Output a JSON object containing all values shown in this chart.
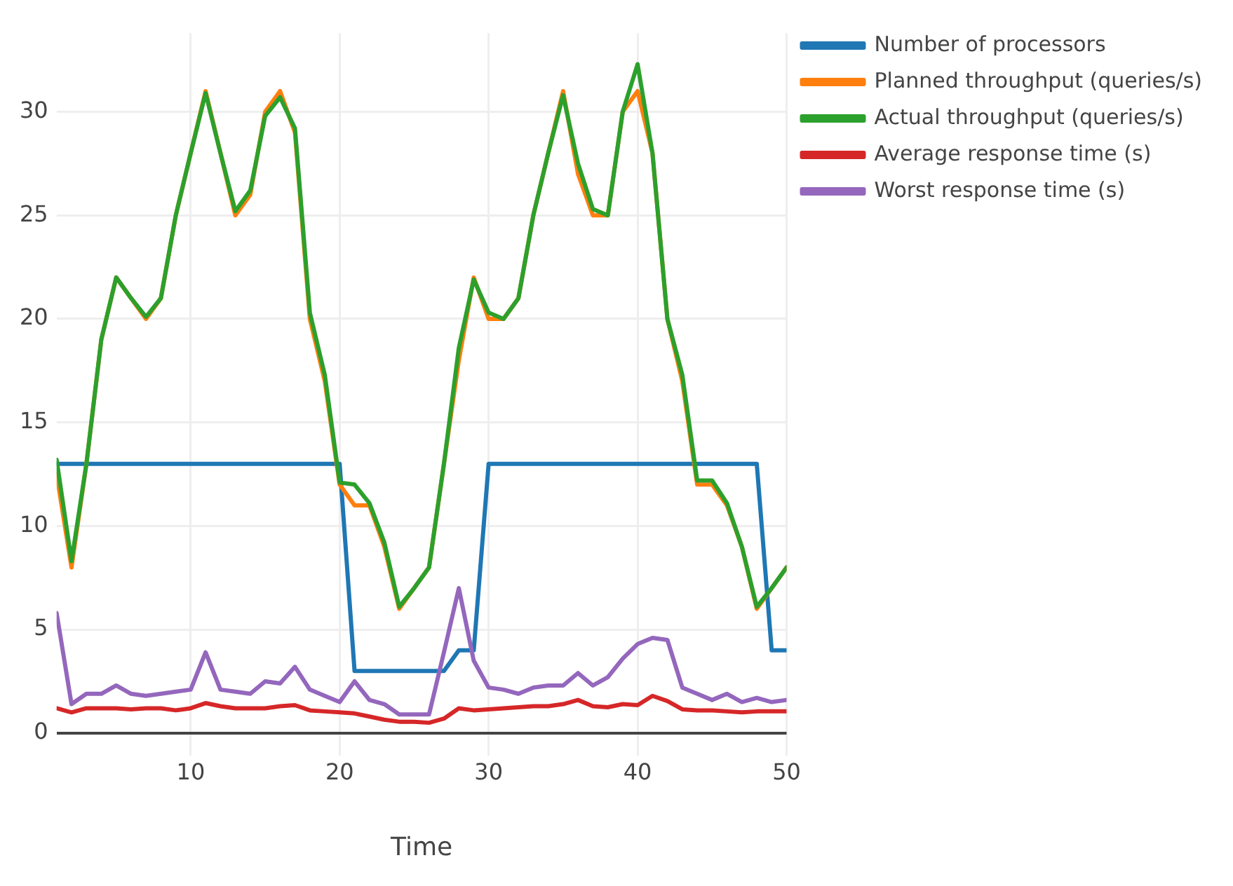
{
  "chart_data": {
    "type": "line",
    "xlabel": "Time",
    "x": [
      1,
      2,
      3,
      4,
      5,
      6,
      7,
      8,
      9,
      10,
      11,
      12,
      13,
      14,
      15,
      16,
      17,
      18,
      19,
      20,
      21,
      22,
      23,
      24,
      25,
      26,
      27,
      28,
      29,
      30,
      31,
      32,
      33,
      34,
      35,
      36,
      37,
      38,
      39,
      40,
      41,
      42,
      43,
      44,
      45,
      46,
      47,
      48,
      49,
      50
    ],
    "series": [
      {
        "name": "Number of processors",
        "color": "#1f77b4",
        "values": [
          13,
          13,
          13,
          13,
          13,
          13,
          13,
          13,
          13,
          13,
          13,
          13,
          13,
          13,
          13,
          13,
          13,
          13,
          13,
          13,
          3,
          3,
          3,
          3,
          3,
          3,
          3,
          4,
          4,
          13,
          13,
          13,
          13,
          13,
          13,
          13,
          13,
          13,
          13,
          13,
          13,
          13,
          13,
          13,
          13,
          13,
          13,
          13,
          4,
          4
        ]
      },
      {
        "name": "Planned throughput (queries/s)",
        "color": "#ff7f0e",
        "values": [
          12.5,
          8,
          13,
          19,
          22,
          21,
          20,
          21,
          25,
          28,
          31,
          28,
          25,
          26,
          30,
          31,
          29,
          20,
          17,
          12,
          11,
          11,
          9,
          6,
          7,
          8,
          13,
          18,
          22,
          20,
          20,
          21,
          25,
          28,
          31,
          27,
          25,
          25,
          30,
          31,
          28,
          20,
          17,
          12,
          12,
          11,
          9,
          6,
          7,
          8
        ]
      },
      {
        "name": "Actual throughput (queries/s)",
        "color": "#2ca02c",
        "values": [
          13.2,
          8.3,
          13,
          19,
          22,
          21,
          20.1,
          21,
          25,
          28,
          30.9,
          28,
          25.2,
          26.2,
          29.8,
          30.7,
          29.2,
          20.3,
          17.3,
          12.1,
          12,
          11.1,
          9.2,
          6.1,
          7,
          8,
          13,
          18.6,
          21.9,
          20.3,
          20,
          21,
          25,
          28,
          30.8,
          27.5,
          25.3,
          25,
          30,
          32.3,
          28,
          20,
          17.3,
          12.2,
          12.2,
          11.1,
          9,
          6.1,
          7,
          8
        ]
      },
      {
        "name": "Average response time (s)",
        "color": "#d62728",
        "values": [
          1.2,
          1,
          1.2,
          1.2,
          1.2,
          1.15,
          1.2,
          1.2,
          1.1,
          1.2,
          1.45,
          1.3,
          1.2,
          1.2,
          1.2,
          1.3,
          1.35,
          1.1,
          1.05,
          1,
          0.95,
          0.8,
          0.65,
          0.55,
          0.55,
          0.5,
          0.7,
          1.2,
          1.1,
          1.15,
          1.2,
          1.25,
          1.3,
          1.3,
          1.4,
          1.6,
          1.3,
          1.25,
          1.4,
          1.35,
          1.8,
          1.55,
          1.15,
          1.1,
          1.1,
          1.05,
          1,
          1.05,
          1.05,
          1.05
        ]
      },
      {
        "name": "Worst response time (s)",
        "color": "#9467bd",
        "values": [
          5.8,
          1.4,
          1.9,
          1.9,
          2.3,
          1.9,
          1.8,
          1.9,
          2,
          2.1,
          3.9,
          2.1,
          2,
          1.9,
          2.5,
          2.4,
          3.2,
          2.1,
          1.8,
          1.5,
          2.5,
          1.6,
          1.4,
          0.9,
          0.9,
          0.9,
          3.9,
          7,
          3.5,
          2.2,
          2.1,
          1.9,
          2.2,
          2.3,
          2.3,
          2.9,
          2.3,
          2.7,
          3.6,
          4.3,
          4.6,
          4.5,
          2.2,
          1.9,
          1.6,
          1.9,
          1.5,
          1.7,
          1.5,
          1.6
        ]
      }
    ],
    "xlim": [
      1,
      50
    ],
    "xticks": [
      10,
      20,
      30,
      40,
      50
    ],
    "ylim": [
      -1.1,
      33.8
    ],
    "yticks": [
      0,
      5,
      10,
      15,
      20,
      25,
      30
    ],
    "grid": true,
    "legend": "top right",
    "marker": "none",
    "line_style": "solid"
  }
}
